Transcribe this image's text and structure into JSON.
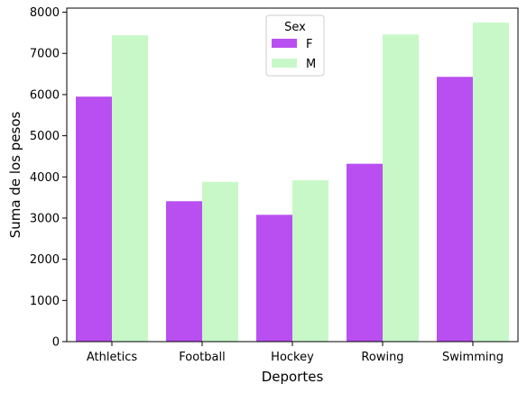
{
  "chart_data": {
    "type": "bar",
    "title": "",
    "xlabel": "Deportes",
    "ylabel": "Suma de los pesos",
    "categories": [
      "Athletics",
      "Football",
      "Hockey",
      "Rowing",
      "Swimming"
    ],
    "series": [
      {
        "name": "F",
        "color": "#b94ff0",
        "values": [
          5950,
          3410,
          3080,
          4320,
          6430
        ]
      },
      {
        "name": "M",
        "color": "#c8f8c8",
        "values": [
          7440,
          3880,
          3920,
          7460,
          7750
        ]
      }
    ],
    "ylim": [
      0,
      8100
    ],
    "yticks": [
      0,
      1000,
      2000,
      3000,
      4000,
      5000,
      6000,
      7000,
      8000
    ],
    "legend": {
      "title": "Sex",
      "position": "top-center"
    },
    "grid": false
  }
}
